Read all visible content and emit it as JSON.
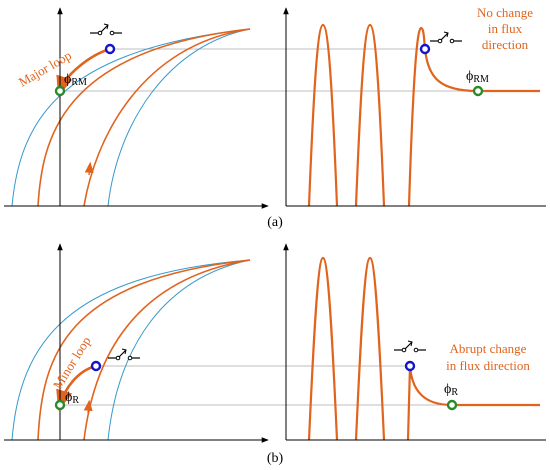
{
  "colors": {
    "orange": "#E0641E",
    "blue": "#3399CC",
    "axis": "#000000",
    "guide": "#999999",
    "marker_blue": "#1414CC",
    "marker_green": "#2A8A2A"
  },
  "panel_a": {
    "label": "(a)",
    "loop_label": "Major loop",
    "annotation_lines": [
      "No change",
      "in flux",
      "direction"
    ],
    "flux_label_main": "ϕ",
    "flux_label_sub": "RM",
    "flux_label_right_main": "ϕ",
    "flux_label_right_sub": "RM"
  },
  "panel_b": {
    "label": "(b)",
    "loop_label": "Minor loop",
    "annotation_lines": [
      "Abrupt change",
      "in flux direction"
    ],
    "flux_label_main": "ϕ",
    "flux_label_sub": "R",
    "flux_label_right_main": "ϕ",
    "flux_label_right_sub": "R"
  },
  "icons": [
    "switch-icon",
    "arrow-icon"
  ]
}
